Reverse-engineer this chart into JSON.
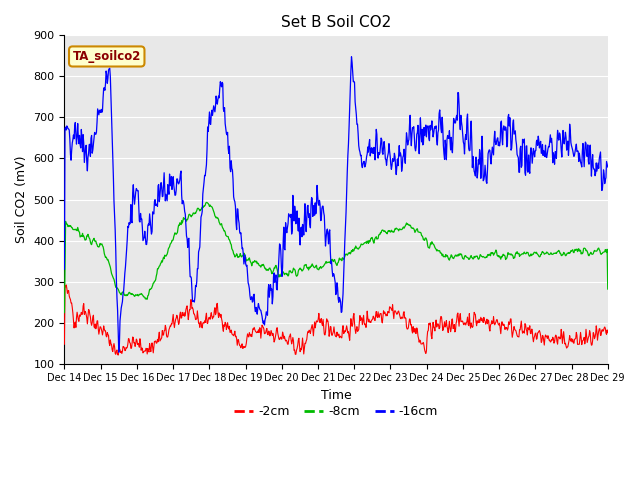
{
  "title": "Set B Soil CO2",
  "ylabel": "Soil CO2 (mV)",
  "xlabel": "Time",
  "annotation": "TA_soilco2",
  "ylim": [
    100,
    900
  ],
  "xtick_labels": [
    "Dec 14",
    "Dec 15",
    "Dec 16",
    "Dec 17",
    "Dec 18",
    "Dec 19",
    "Dec 20",
    "Dec 21",
    "Dec 22",
    "Dec 23",
    "Dec 24",
    "Dec 25",
    "Dec 26",
    "Dec 27",
    "Dec 28",
    "Dec 29"
  ],
  "legend_labels": [
    "-2cm",
    "-8cm",
    "-16cm"
  ],
  "line_colors": [
    "#ff0000",
    "#00bb00",
    "#0000ff"
  ],
  "background_color": "#e8e8e8",
  "grid_color": "#ffffff",
  "fig_bg": "#ffffff",
  "annotation_facecolor": "#ffffcc",
  "annotation_edgecolor": "#cc8800",
  "annotation_textcolor": "#8B0000"
}
